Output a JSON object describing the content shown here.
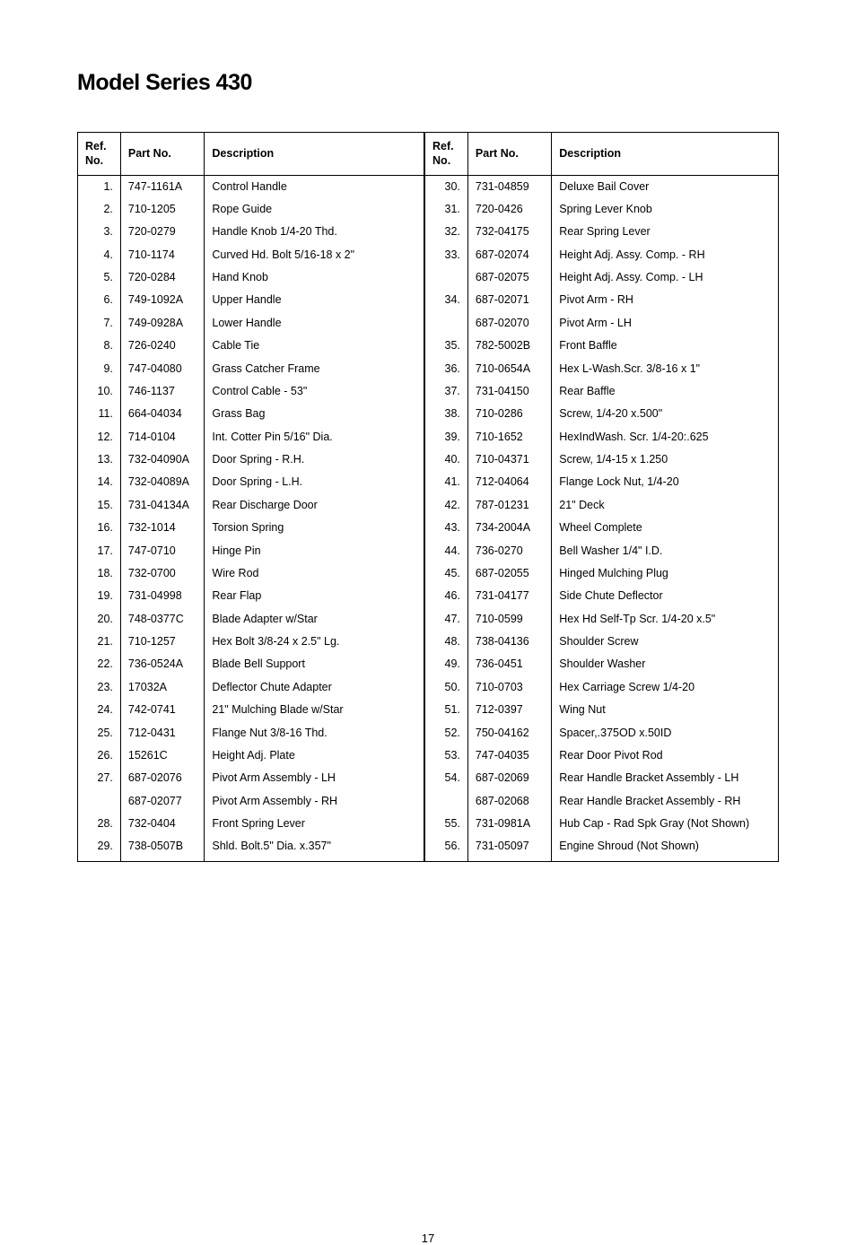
{
  "title": "Model Series 430",
  "pageNumber": "17",
  "headers": {
    "refNo": "Ref. No.",
    "partNo": "Part No.",
    "description": "Description"
  },
  "leftRows": [
    {
      "ref": "1.",
      "part": "747-1161A",
      "desc": "Control Handle"
    },
    {
      "ref": "2.",
      "part": "710-1205",
      "desc": "Rope Guide"
    },
    {
      "ref": "3.",
      "part": "720-0279",
      "desc": "Handle Knob 1/4-20 Thd."
    },
    {
      "ref": "4.",
      "part": "710-1174",
      "desc": "Curved Hd. Bolt 5/16-18 x 2\""
    },
    {
      "ref": "5.",
      "part": "720-0284",
      "desc": "Hand Knob"
    },
    {
      "ref": "6.",
      "part": "749-1092A",
      "desc": "Upper Handle"
    },
    {
      "ref": "7.",
      "part": "749-0928A",
      "desc": "Lower Handle"
    },
    {
      "ref": "8.",
      "part": "726-0240",
      "desc": "Cable Tie"
    },
    {
      "ref": "9.",
      "part": "747-04080",
      "desc": "Grass Catcher Frame"
    },
    {
      "ref": "10.",
      "part": "746-1137",
      "desc": "Control Cable - 53\""
    },
    {
      "ref": "11.",
      "part": "664-04034",
      "desc": "Grass Bag"
    },
    {
      "ref": "12.",
      "part": "714-0104",
      "desc": "Int. Cotter Pin 5/16\" Dia."
    },
    {
      "ref": "13.",
      "part": "732-04090A",
      "desc": "Door Spring - R.H."
    },
    {
      "ref": "14.",
      "part": "732-04089A",
      "desc": "Door Spring - L.H."
    },
    {
      "ref": "15.",
      "part": "731-04134A",
      "desc": "Rear Discharge Door"
    },
    {
      "ref": "16.",
      "part": "732-1014",
      "desc": "Torsion Spring"
    },
    {
      "ref": "17.",
      "part": "747-0710",
      "desc": "Hinge Pin"
    },
    {
      "ref": "18.",
      "part": "732-0700",
      "desc": "Wire Rod"
    },
    {
      "ref": "19.",
      "part": "731-04998",
      "desc": "Rear Flap"
    },
    {
      "ref": "20.",
      "part": "748-0377C",
      "desc": "Blade Adapter w/Star"
    },
    {
      "ref": "21.",
      "part": "710-1257",
      "desc": "Hex Bolt 3/8-24 x 2.5\" Lg."
    },
    {
      "ref": "22.",
      "part": "736-0524A",
      "desc": "Blade Bell Support"
    },
    {
      "ref": "23.",
      "part": "17032A",
      "desc": "Deflector Chute Adapter"
    },
    {
      "ref": "24.",
      "part": "742-0741",
      "desc": "21\" Mulching Blade w/Star"
    },
    {
      "ref": "25.",
      "part": "712-0431",
      "desc": "Flange Nut 3/8-16 Thd."
    },
    {
      "ref": "26.",
      "part": "15261C",
      "desc": "Height Adj. Plate"
    },
    {
      "ref": "27.",
      "part": "687-02076",
      "desc": "Pivot Arm Assembly - LH"
    },
    {
      "ref": "",
      "part": "687-02077",
      "desc": "Pivot Arm Assembly - RH"
    },
    {
      "ref": "28.",
      "part": "732-0404",
      "desc": "Front Spring Lever"
    },
    {
      "ref": "29.",
      "part": "738-0507B",
      "desc": "Shld. Bolt.5\" Dia. x.357\""
    }
  ],
  "rightRows": [
    {
      "ref": "30.",
      "part": "731-04859",
      "desc": "Deluxe Bail Cover"
    },
    {
      "ref": "31.",
      "part": "720-0426",
      "desc": "Spring Lever Knob"
    },
    {
      "ref": "32.",
      "part": "732-04175",
      "desc": "Rear Spring Lever"
    },
    {
      "ref": "33.",
      "part": "687-02074",
      "desc": "Height Adj. Assy. Comp. - RH"
    },
    {
      "ref": "",
      "part": "687-02075",
      "desc": "Height Adj. Assy. Comp. - LH"
    },
    {
      "ref": "34.",
      "part": "687-02071",
      "desc": "Pivot Arm - RH"
    },
    {
      "ref": "",
      "part": "687-02070",
      "desc": "Pivot Arm - LH"
    },
    {
      "ref": "35.",
      "part": "782-5002B",
      "desc": "Front Baffle"
    },
    {
      "ref": "36.",
      "part": "710-0654A",
      "desc": "Hex L-Wash.Scr. 3/8-16 x 1\""
    },
    {
      "ref": "37.",
      "part": "731-04150",
      "desc": "Rear Baffle"
    },
    {
      "ref": "38.",
      "part": "710-0286",
      "desc": "Screw, 1/4-20 x.500\""
    },
    {
      "ref": "39.",
      "part": "710-1652",
      "desc": "HexIndWash. Scr. 1/4-20:.625"
    },
    {
      "ref": "40.",
      "part": "710-04371",
      "desc": "Screw, 1/4-15 x 1.250"
    },
    {
      "ref": "41.",
      "part": "712-04064",
      "desc": "Flange Lock Nut, 1/4-20"
    },
    {
      "ref": "42.",
      "part": "787-01231",
      "desc": "21\" Deck"
    },
    {
      "ref": "43.",
      "part": "734-2004A",
      "desc": "Wheel Complete"
    },
    {
      "ref": "44.",
      "part": "736-0270",
      "desc": "Bell Washer 1/4\" I.D."
    },
    {
      "ref": "45.",
      "part": "687-02055",
      "desc": "Hinged Mulching Plug"
    },
    {
      "ref": "46.",
      "part": "731-04177",
      "desc": "Side Chute Deflector"
    },
    {
      "ref": "47.",
      "part": "710-0599",
      "desc": "Hex Hd Self-Tp Scr. 1/4-20 x.5\""
    },
    {
      "ref": "48.",
      "part": "738-04136",
      "desc": "Shoulder Screw"
    },
    {
      "ref": "49.",
      "part": "736-0451",
      "desc": "Shoulder Washer"
    },
    {
      "ref": "50.",
      "part": "710-0703",
      "desc": "Hex Carriage Screw 1/4-20"
    },
    {
      "ref": "51.",
      "part": "712-0397",
      "desc": "Wing Nut"
    },
    {
      "ref": "52.",
      "part": "750-04162",
      "desc": "Spacer,.375OD x.50ID"
    },
    {
      "ref": "53.",
      "part": "747-04035",
      "desc": "Rear Door Pivot Rod"
    },
    {
      "ref": "54.",
      "part": "687-02069",
      "desc": "Rear Handle Bracket Assembly - LH"
    },
    {
      "ref": "",
      "part": "687-02068",
      "desc": "Rear Handle Bracket Assembly - RH"
    },
    {
      "ref": "55.",
      "part": "731-0981A",
      "desc": "Hub Cap - Rad Spk Gray (Not Shown)"
    },
    {
      "ref": "56.",
      "part": "731-05097",
      "desc": "Engine Shroud (Not Shown)"
    }
  ]
}
